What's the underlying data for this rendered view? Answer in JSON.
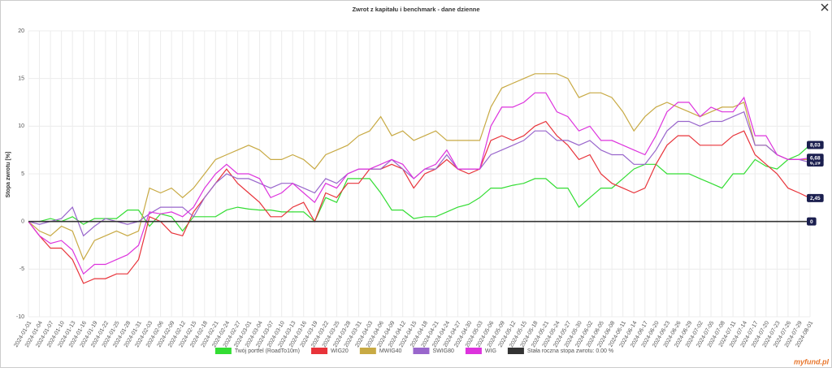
{
  "chart_data": {
    "type": "line",
    "title": "Zwrot z kapitału i benchmark - dane dzienne",
    "y_label": "Stopa zwrotu [%]",
    "brand": "myfund.pl",
    "ylim": [
      -10,
      20
    ],
    "yticks": [
      -10,
      -5,
      0,
      5,
      10,
      15,
      20
    ],
    "grid": true,
    "legend": "bottom",
    "categories": [
      "2024-01-01",
      "2024-01-04",
      "2024-01-07",
      "2024-01-10",
      "2024-01-13",
      "2024-01-16",
      "2024-01-19",
      "2024-01-22",
      "2024-01-25",
      "2024-01-28",
      "2024-01-31",
      "2024-02-03",
      "2024-02-06",
      "2024-02-09",
      "2024-02-12",
      "2024-02-15",
      "2024-02-18",
      "2024-02-21",
      "2024-02-24",
      "2024-02-27",
      "2024-03-01",
      "2024-03-04",
      "2024-03-07",
      "2024-03-10",
      "2024-03-13",
      "2024-03-16",
      "2024-03-19",
      "2024-03-22",
      "2024-03-25",
      "2024-03-28",
      "2024-03-31",
      "2024-04-03",
      "2024-04-06",
      "2024-04-09",
      "2024-04-12",
      "2024-04-15",
      "2024-04-18",
      "2024-04-21",
      "2024-04-24",
      "2024-04-27",
      "2024-04-30",
      "2024-05-03",
      "2024-05-06",
      "2024-05-09",
      "2024-05-12",
      "2024-05-15",
      "2024-05-18",
      "2024-05-21",
      "2024-05-24",
      "2024-05-27",
      "2024-05-30",
      "2024-06-02",
      "2024-06-05",
      "2024-06-08",
      "2024-06-11",
      "2024-06-14",
      "2024-06-17",
      "2024-06-20",
      "2024-06-23",
      "2024-06-26",
      "2024-06-29",
      "2024-07-02",
      "2024-07-05",
      "2024-07-08",
      "2024-07-11",
      "2024-07-14",
      "2024-07-17",
      "2024-07-20",
      "2024-07-23",
      "2024-07-26",
      "2024-07-29",
      "2024-08-01"
    ],
    "series": [
      {
        "name": "Twój portfel (RoadTo10m)",
        "color": "#33dd33",
        "end_label": "8,03",
        "values": [
          0,
          0,
          0.3,
          0,
          0.5,
          -0.3,
          0.3,
          0.3,
          0.3,
          1.2,
          1.2,
          -0.5,
          0.8,
          0.5,
          -1,
          0.5,
          0.5,
          0.5,
          1.2,
          1.5,
          1.3,
          1.2,
          1.2,
          1,
          1,
          1,
          0,
          2.5,
          2,
          4.5,
          4.5,
          4.5,
          3,
          1.2,
          1.2,
          0.3,
          0.5,
          0.5,
          1,
          1.5,
          1.8,
          2.5,
          3.5,
          3.5,
          3.8,
          4,
          4.5,
          4.5,
          3.5,
          3.5,
          1.5,
          2.5,
          3.5,
          3.5,
          4.5,
          5.5,
          6,
          6,
          5,
          5,
          5,
          4.5,
          4,
          3.5,
          5,
          5,
          6.5,
          5.8,
          5.5,
          6.5,
          7,
          8.03
        ]
      },
      {
        "name": "WIG20",
        "color": "#e8333a",
        "end_label": "2,45",
        "values": [
          0,
          -1.5,
          -2.8,
          -2.8,
          -4,
          -6.5,
          -6,
          -6,
          -5.5,
          -5.5,
          -4,
          0.5,
          0,
          -1.2,
          -1.5,
          1,
          2.5,
          4,
          5.5,
          4,
          3,
          2,
          0.5,
          0.5,
          1.5,
          2,
          0,
          3,
          2.5,
          4,
          4,
          5.5,
          5.5,
          6,
          5.5,
          3.5,
          5,
          5.5,
          6.5,
          5.5,
          5,
          5.5,
          8.5,
          9,
          8.5,
          9,
          10,
          10.5,
          9,
          8,
          6.5,
          7,
          5,
          4,
          3.5,
          3,
          3.5,
          6,
          8,
          9,
          9,
          8,
          8,
          8,
          9,
          9.5,
          7,
          6,
          5,
          3.5,
          3,
          2.45
        ]
      },
      {
        "name": "MWIG40",
        "color": "#c8aa44",
        "values": [
          0,
          -1,
          -1.5,
          -0.5,
          -1,
          -4,
          -2,
          -1.5,
          -1,
          -1.5,
          -1,
          3.5,
          3,
          3.5,
          2.5,
          3.5,
          5,
          6.5,
          7,
          7.5,
          8,
          7.5,
          6.5,
          6.5,
          7,
          6.5,
          5.5,
          7,
          7.5,
          8,
          9,
          9.5,
          11,
          9,
          9.5,
          8.5,
          9,
          9.5,
          8.5,
          8.5,
          8.5,
          8.5,
          12,
          14,
          14.5,
          15,
          15.5,
          15.5,
          15.5,
          15,
          13,
          13.5,
          13.5,
          13,
          11.5,
          9.5,
          11,
          12,
          12.5,
          12,
          11.5,
          11,
          11.5,
          12,
          12,
          12.5,
          8,
          8,
          7,
          6.5,
          6.5,
          6.5
        ]
      },
      {
        "name": "SWIG80",
        "color": "#9966cc",
        "end_label": "6,19",
        "values": [
          0,
          -0.3,
          0,
          0.3,
          1.5,
          -1.5,
          -0.5,
          0.3,
          0,
          -0.3,
          0,
          0.8,
          1.5,
          1.5,
          1.5,
          0.5,
          2.5,
          4,
          5,
          4.5,
          4.5,
          4,
          3.5,
          4,
          4,
          3.5,
          3,
          4.5,
          4,
          5,
          5.5,
          5.5,
          5.5,
          6.5,
          5.5,
          4.5,
          5.5,
          5.5,
          7,
          5.5,
          5.5,
          5.5,
          7,
          7.5,
          8,
          8.5,
          9.5,
          9.5,
          8.5,
          8.5,
          8,
          8.5,
          7.5,
          7,
          7,
          6,
          6,
          7.5,
          9.5,
          10.5,
          10.5,
          10,
          10.5,
          10.5,
          11,
          11.5,
          8,
          8,
          7,
          6.5,
          6.5,
          6.19
        ]
      },
      {
        "name": "WIG",
        "color": "#dd33dd",
        "end_label": "6,68",
        "values": [
          0,
          -1.5,
          -2.3,
          -2,
          -3,
          -5.5,
          -4.5,
          -4.5,
          -4,
          -3.5,
          -2.5,
          1,
          0.8,
          1,
          0.5,
          1.5,
          3.5,
          5,
          6,
          5,
          5,
          4.5,
          2.5,
          3,
          4,
          3,
          2,
          4,
          3.5,
          5,
          5.5,
          5.5,
          6,
          6.5,
          6,
          4.5,
          5.5,
          6,
          7.5,
          5.5,
          5.5,
          5.5,
          10,
          12,
          12,
          12.5,
          13.5,
          13.5,
          11.5,
          11,
          9.5,
          10,
          8.5,
          8.5,
          8,
          7.5,
          7,
          9,
          11.5,
          12.5,
          12.5,
          11,
          12,
          11.5,
          11.5,
          13,
          9,
          9,
          7,
          6.5,
          6.5,
          6.68
        ]
      },
      {
        "name": "Stała roczna stopa zwrotu: 0.00 %",
        "color": "#333333",
        "end_label": "0",
        "values": [
          0,
          0,
          0,
          0,
          0,
          0,
          0,
          0,
          0,
          0,
          0,
          0,
          0,
          0,
          0,
          0,
          0,
          0,
          0,
          0,
          0,
          0,
          0,
          0,
          0,
          0,
          0,
          0,
          0,
          0,
          0,
          0,
          0,
          0,
          0,
          0,
          0,
          0,
          0,
          0,
          0,
          0,
          0,
          0,
          0,
          0,
          0,
          0,
          0,
          0,
          0,
          0,
          0,
          0,
          0,
          0,
          0,
          0,
          0,
          0,
          0,
          0,
          0,
          0,
          0,
          0,
          0,
          0,
          0,
          0,
          0,
          0
        ]
      }
    ]
  }
}
